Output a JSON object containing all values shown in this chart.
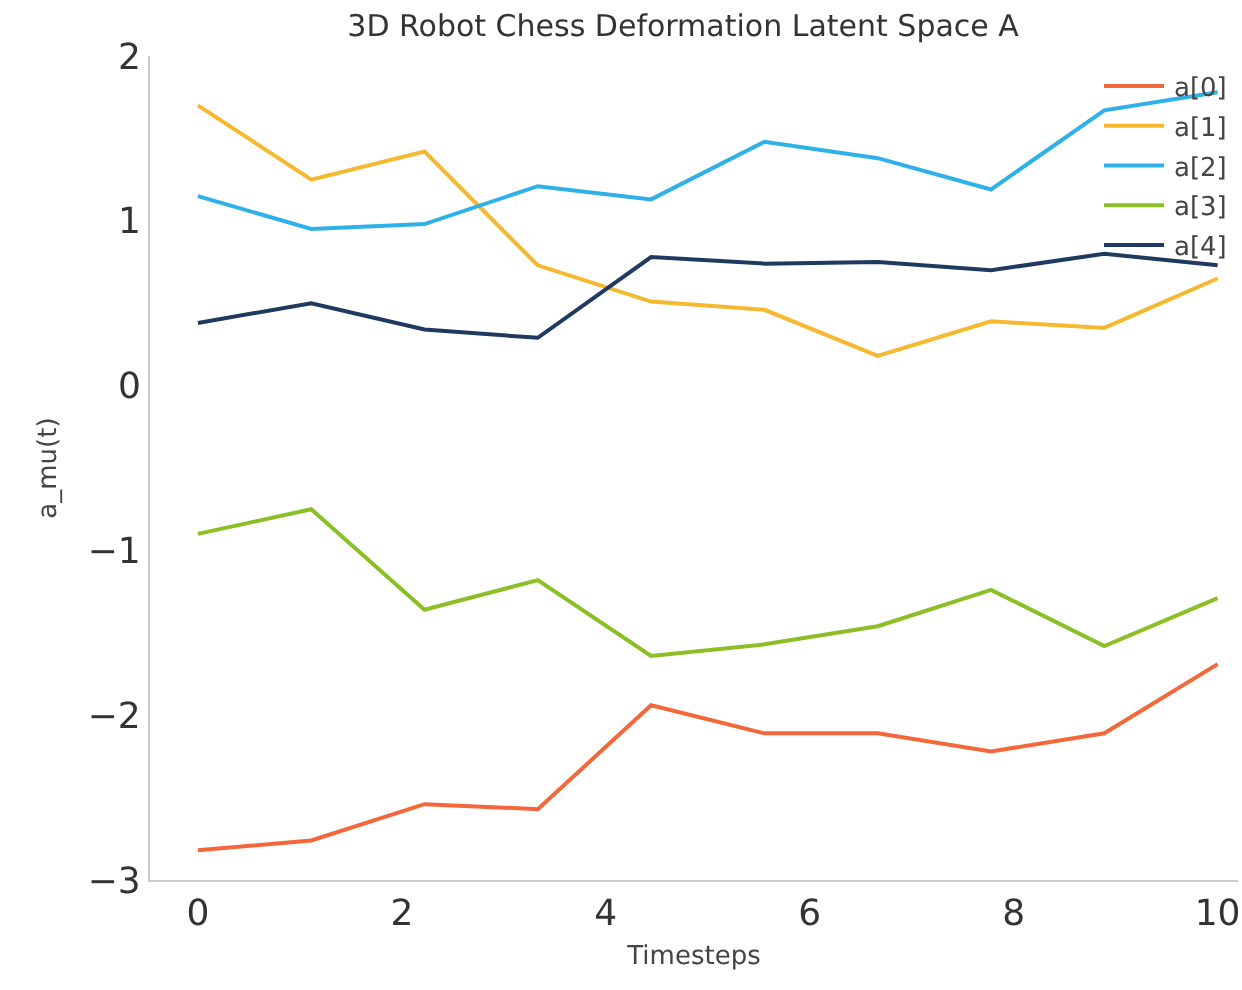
{
  "chart_data": {
    "type": "line",
    "title": "3D Robot Chess Deformation Latent Space A",
    "xlabel": "Timesteps",
    "ylabel": "a_mu(t)",
    "x": [
      0,
      1.111,
      2.222,
      3.333,
      4.444,
      5.556,
      6.667,
      7.778,
      8.889,
      10
    ],
    "series": [
      {
        "name": "a[0]",
        "color": "#f4673a",
        "values": [
          -2.82,
          -2.76,
          -2.54,
          -2.57,
          -1.94,
          -2.11,
          -2.11,
          -2.22,
          -2.11,
          -1.69
        ]
      },
      {
        "name": "a[1]",
        "color": "#f5b82e",
        "values": [
          1.7,
          1.25,
          1.42,
          0.73,
          0.51,
          0.46,
          0.18,
          0.39,
          0.35,
          0.65
        ]
      },
      {
        "name": "a[2]",
        "color": "#2eb0e8",
        "values": [
          1.15,
          0.95,
          0.98,
          1.21,
          1.13,
          1.48,
          1.38,
          1.19,
          1.67,
          1.78
        ]
      },
      {
        "name": "a[3]",
        "color": "#8cbf26",
        "values": [
          -0.9,
          -0.75,
          -1.36,
          -1.18,
          -1.64,
          -1.57,
          -1.46,
          -1.24,
          -1.58,
          -1.29
        ]
      },
      {
        "name": "a[4]",
        "color": "#1f3a60",
        "values": [
          0.38,
          0.5,
          0.34,
          0.29,
          0.78,
          0.74,
          0.75,
          0.7,
          0.8,
          0.73
        ]
      }
    ],
    "xlim": [
      -0.47,
      10.2
    ],
    "xticks": [
      0,
      2,
      4,
      6,
      8,
      10
    ],
    "ylim": [
      -3,
      2
    ],
    "yticks": [
      {
        "value": -3,
        "label": "−3"
      },
      {
        "value": -2,
        "label": "−2"
      },
      {
        "value": -1,
        "label": "−1"
      },
      0,
      1,
      2
    ],
    "grid": false,
    "legend": "top right",
    "line_style": "solid",
    "marker": "none"
  }
}
